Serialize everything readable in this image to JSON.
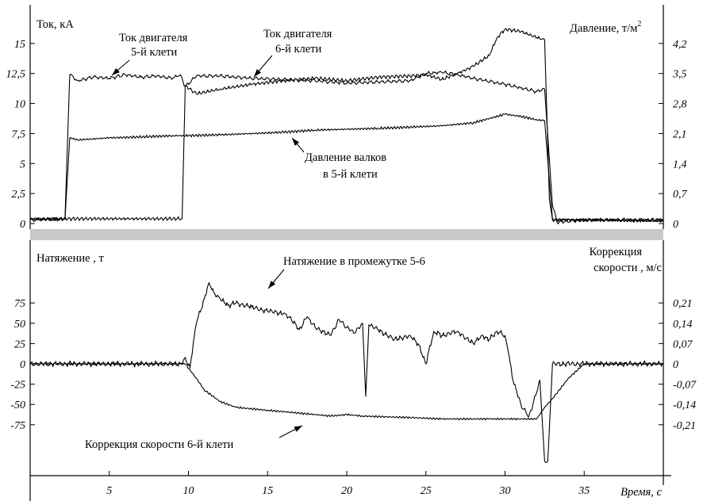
{
  "chart_data": [
    {
      "type": "line",
      "y_left": {
        "label": "Ток, кА",
        "ticks": [
          "0",
          "2,5",
          "5",
          "7,5",
          "10",
          "12,5",
          "15"
        ],
        "ylim": [
          0,
          17.5
        ]
      },
      "y_right": {
        "label": "Давление, т/м",
        "label_sup": "2",
        "ticks": [
          "0",
          "0,7",
          "1,4",
          "2,1",
          "2,8",
          "3,5",
          "4,2"
        ],
        "ylim": [
          0,
          4.9
        ]
      },
      "xlim": [
        0,
        40
      ],
      "series": [
        {
          "name": "Ток двигателя 5-й клети",
          "label_lines": [
            "Ток двигателя",
            "5-й клети"
          ],
          "axis": "left",
          "points": [
            [
              0,
              0.3
            ],
            [
              2.2,
              0.4
            ],
            [
              2.5,
              12.4
            ],
            [
              3,
              11.9
            ],
            [
              4,
              12.2
            ],
            [
              5,
              12.1
            ],
            [
              6,
              12.4
            ],
            [
              7,
              12.2
            ],
            [
              8,
              12.3
            ],
            [
              9,
              12.1
            ],
            [
              9.5,
              12.4
            ],
            [
              9.8,
              11.4
            ],
            [
              10.5,
              12.3
            ],
            [
              12,
              12.3
            ],
            [
              14,
              12.1
            ],
            [
              16,
              12.0
            ],
            [
              18,
              11.9
            ],
            [
              20,
              11.7
            ],
            [
              22,
              11.8
            ],
            [
              24,
              11.9
            ],
            [
              25,
              12.5
            ],
            [
              26,
              12.6
            ],
            [
              27,
              12.4
            ],
            [
              28,
              12.1
            ],
            [
              30,
              11.6
            ],
            [
              31,
              11.3
            ],
            [
              32,
              11.0
            ],
            [
              32.5,
              11.2
            ],
            [
              33,
              1.5
            ],
            [
              33.3,
              0.1
            ],
            [
              35,
              0.3
            ],
            [
              38,
              0.3
            ],
            [
              40,
              0.3
            ]
          ]
        },
        {
          "name": "Ток двигателя 6-й клети",
          "label_lines": [
            "Ток двигателя",
            "6-й клети"
          ],
          "axis": "left",
          "points": [
            [
              0,
              0.4
            ],
            [
              9.6,
              0.4
            ],
            [
              9.8,
              11.5
            ],
            [
              10.5,
              10.8
            ],
            [
              12,
              11.2
            ],
            [
              14,
              11.6
            ],
            [
              16,
              11.9
            ],
            [
              18,
              12.1
            ],
            [
              20,
              11.9
            ],
            [
              22,
              12.2
            ],
            [
              24,
              12.3
            ],
            [
              25,
              12.4
            ],
            [
              26,
              12.0
            ],
            [
              27,
              12.5
            ],
            [
              28,
              13.1
            ],
            [
              29,
              14.0
            ],
            [
              29.5,
              15.5
            ],
            [
              30,
              16.2
            ],
            [
              31,
              16.0
            ],
            [
              32,
              15.5
            ],
            [
              32.5,
              15.3
            ],
            [
              32.8,
              2.0
            ],
            [
              33,
              0.3
            ],
            [
              35,
              0.3
            ],
            [
              40,
              0.3
            ]
          ]
        },
        {
          "name": "Давление валков в 5-й клети",
          "label_lines": [
            "Давление валков",
            "в 5-й клети"
          ],
          "axis": "right",
          "points": [
            [
              0,
              0.1
            ],
            [
              2.2,
              0.1
            ],
            [
              2.5,
              2.0
            ],
            [
              3,
              1.95
            ],
            [
              5,
              2.0
            ],
            [
              7,
              2.02
            ],
            [
              9,
              2.05
            ],
            [
              10,
              2.05
            ],
            [
              12,
              2.07
            ],
            [
              14,
              2.1
            ],
            [
              16,
              2.13
            ],
            [
              18,
              2.18
            ],
            [
              20,
              2.2
            ],
            [
              22,
              2.22
            ],
            [
              24,
              2.25
            ],
            [
              26,
              2.28
            ],
            [
              28,
              2.35
            ],
            [
              29,
              2.45
            ],
            [
              30,
              2.55
            ],
            [
              31,
              2.5
            ],
            [
              32,
              2.42
            ],
            [
              32.5,
              2.4
            ],
            [
              33,
              0.1
            ],
            [
              40,
              0.05
            ]
          ]
        }
      ]
    },
    {
      "type": "line",
      "y_left": {
        "label": "Натяжение , т",
        "ticks": [
          "-75",
          "-50",
          "-25",
          "0",
          "25",
          "50",
          "75"
        ],
        "ylim": [
          -87,
          87
        ]
      },
      "y_right": {
        "label_lines": [
          "Коррекция",
          "скорости , м/с"
        ],
        "ticks": [
          "-0,21",
          "-0,14",
          "-0,07",
          "0",
          "0,07",
          "0,14",
          "0,21"
        ],
        "ylim": [
          -0.2436,
          0.2436
        ]
      },
      "x_ticks": [
        "5",
        "10",
        "15",
        "20",
        "25",
        "30",
        "35"
      ],
      "xlabel": "Время, с",
      "xlim": [
        0,
        40
      ],
      "series": [
        {
          "name": "Натяжение в промежутке 5-6",
          "label_lines": [
            "Натяжение в промежутке  5-6"
          ],
          "axis": "left",
          "points": [
            [
              0,
              0
            ],
            [
              9.6,
              0
            ],
            [
              9.8,
              8
            ],
            [
              10.1,
              -5
            ],
            [
              10.3,
              25
            ],
            [
              10.5,
              50
            ],
            [
              11,
              80
            ],
            [
              11.3,
              100
            ],
            [
              11.6,
              88
            ],
            [
              12,
              80
            ],
            [
              12.5,
              72
            ],
            [
              13,
              75
            ],
            [
              14,
              70
            ],
            [
              15,
              65
            ],
            [
              16,
              62
            ],
            [
              16.5,
              55
            ],
            [
              17,
              42
            ],
            [
              17.5,
              58
            ],
            [
              18,
              45
            ],
            [
              19,
              35
            ],
            [
              19.5,
              55
            ],
            [
              20,
              45
            ],
            [
              20.5,
              38
            ],
            [
              21,
              50
            ],
            [
              21.2,
              -40
            ],
            [
              21.4,
              48
            ],
            [
              22,
              42
            ],
            [
              23,
              30
            ],
            [
              24,
              35
            ],
            [
              24.5,
              25
            ],
            [
              25,
              0
            ],
            [
              25.5,
              40
            ],
            [
              26,
              35
            ],
            [
              27,
              40
            ],
            [
              28,
              25
            ],
            [
              28.5,
              35
            ],
            [
              29,
              30
            ],
            [
              29.5,
              40
            ],
            [
              30,
              35
            ],
            [
              30.2,
              15
            ],
            [
              30.5,
              -20
            ],
            [
              31,
              -50
            ],
            [
              31.5,
              -65
            ],
            [
              32,
              -35
            ],
            [
              32.2,
              -20
            ],
            [
              32.5,
              -120
            ],
            [
              32.7,
              -120
            ],
            [
              33,
              0
            ],
            [
              40,
              0
            ]
          ]
        },
        {
          "name": "Коррекция скорости 6-й клети",
          "label_lines": [
            "Коррекция скорости  6-й клети"
          ],
          "axis": "right",
          "points": [
            [
              0,
              0
            ],
            [
              9.8,
              0
            ],
            [
              10.5,
              -0.05
            ],
            [
              11,
              -0.09
            ],
            [
              12,
              -0.13
            ],
            [
              13,
              -0.15
            ],
            [
              14,
              -0.155
            ],
            [
              15,
              -0.16
            ],
            [
              17,
              -0.17
            ],
            [
              19,
              -0.18
            ],
            [
              20,
              -0.175
            ],
            [
              21,
              -0.18
            ],
            [
              22,
              -0.182
            ],
            [
              24,
              -0.185
            ],
            [
              26,
              -0.19
            ],
            [
              28,
              -0.19
            ],
            [
              29,
              -0.19
            ],
            [
              30,
              -0.19
            ],
            [
              31,
              -0.19
            ],
            [
              32,
              -0.19
            ],
            [
              32.5,
              -0.15
            ],
            [
              33,
              -0.12
            ],
            [
              34,
              -0.05
            ],
            [
              35,
              0
            ],
            [
              40,
              0
            ]
          ]
        }
      ]
    }
  ]
}
